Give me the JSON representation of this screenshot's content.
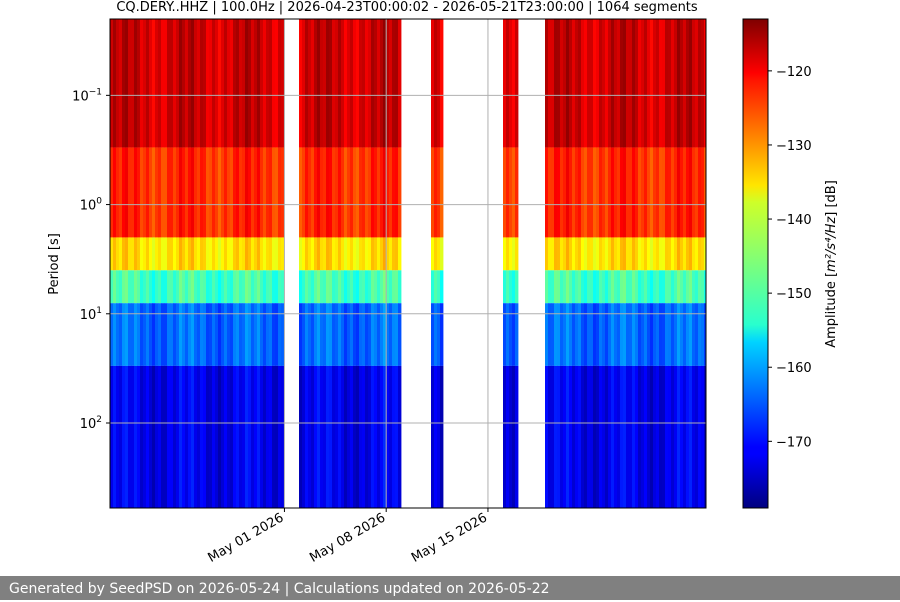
{
  "chart_data": {
    "type": "heatmap",
    "title": "CQ.DERY..HHZ | 100.0Hz | 2026-04-23T00:00:02 - 2026-05-21T23:00:00 | 1064 segments",
    "ylabel": "Period [s]",
    "y_scale": "log",
    "y_inverted": true,
    "ylim": [
      0.02,
      600
    ],
    "y_ticks": [
      {
        "value": 0.1,
        "base": "10",
        "exp": "−1"
      },
      {
        "value": 1,
        "base": "10",
        "exp": "0"
      },
      {
        "value": 10,
        "base": "10",
        "exp": "1"
      },
      {
        "value": 100,
        "base": "10",
        "exp": "2"
      }
    ],
    "x_range": [
      "2026-04-19",
      "2026-05-30"
    ],
    "x_ticks": [
      {
        "date": "2026-05-01",
        "label": "May 01 2026"
      },
      {
        "date": "2026-05-08",
        "label": "May 08 2026"
      },
      {
        "date": "2026-05-15",
        "label": "May 15 2026"
      }
    ],
    "grid": true,
    "data_gaps": [
      [
        "2026-05-01",
        "2026-05-02"
      ],
      [
        "2026-05-09",
        "2026-05-11"
      ],
      [
        "2026-05-12",
        "2026-05-15"
      ],
      [
        "2026-05-15",
        "2026-05-16"
      ],
      [
        "2026-05-17",
        "2026-05-19"
      ]
    ],
    "colorbar": {
      "label_prefix": "Amplitude [",
      "label_unit": "m²/s⁴/Hz",
      "label_suffix": "] [dB]",
      "range": [
        -179,
        -113
      ],
      "ticks": [
        -120,
        -130,
        -140,
        -150,
        -160,
        -170
      ],
      "colormap": "jet"
    },
    "bands": [
      {
        "period_min": 0.02,
        "period_max": 0.3,
        "db": -118
      },
      {
        "period_min": 0.3,
        "period_max": 2,
        "db": -124
      },
      {
        "period_min": 2,
        "period_max": 4,
        "db": -136
      },
      {
        "period_min": 4,
        "period_max": 8,
        "db": -150
      },
      {
        "period_min": 8,
        "period_max": 30,
        "db": -164
      },
      {
        "period_min": 30,
        "period_max": 600,
        "db": -172
      }
    ]
  },
  "footer": {
    "text": "Generated by SeedPSD on 2026-05-24 | Calculations updated on 2026-05-22"
  }
}
